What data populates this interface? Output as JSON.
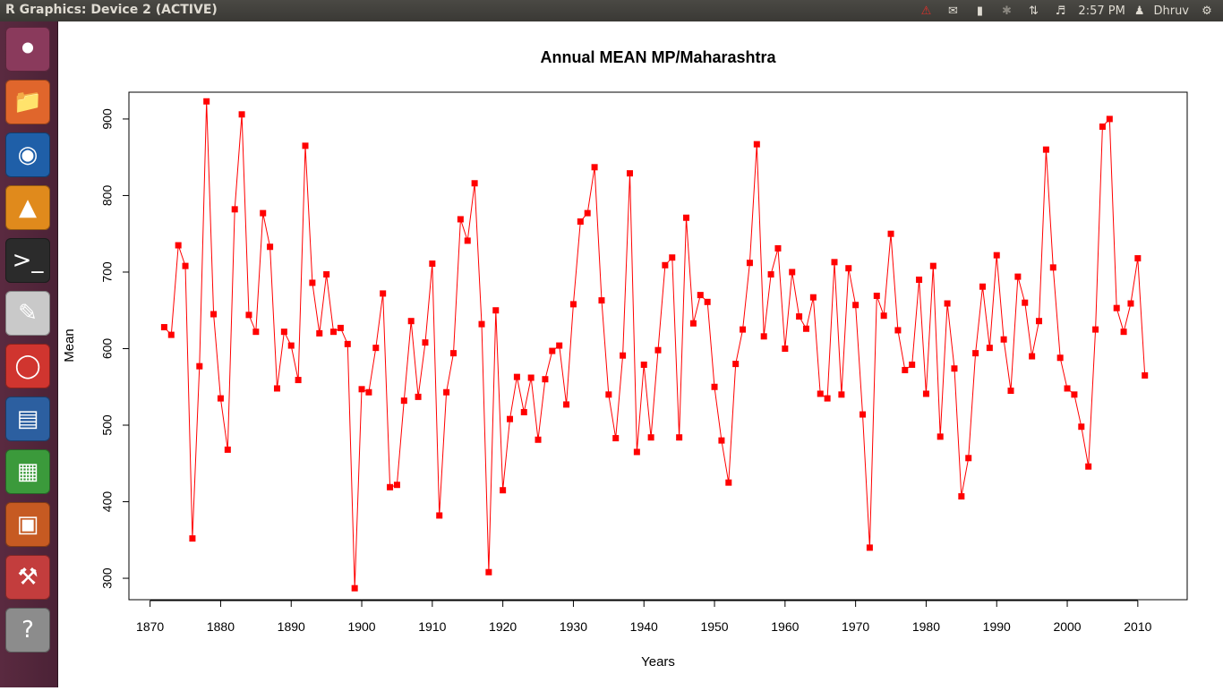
{
  "window": {
    "title": "R Graphics: Device 2 (ACTIVE)"
  },
  "tray": {
    "time": "2:57 PM",
    "user": "Dhruv"
  },
  "launcher": {
    "items": [
      {
        "name": "dash-icon",
        "color": "#8a3a5c"
      },
      {
        "name": "files-icon",
        "color": "#e0662c"
      },
      {
        "name": "firefox-icon",
        "color": "#1f5fa8"
      },
      {
        "name": "vlc-icon",
        "color": "#e08a1c"
      },
      {
        "name": "terminal-icon",
        "color": "#2b2b2b"
      },
      {
        "name": "text-editor-icon",
        "color": "#c9c9c9"
      },
      {
        "name": "document-viewer-icon",
        "color": "#d0352f"
      },
      {
        "name": "writer-icon",
        "color": "#2c5fa0"
      },
      {
        "name": "calc-icon",
        "color": "#3b9a3b"
      },
      {
        "name": "impress-icon",
        "color": "#c65a22"
      },
      {
        "name": "system-settings-icon",
        "color": "#c33d3d"
      },
      {
        "name": "workspace-switcher-icon",
        "color": "#8c8c8c"
      }
    ]
  },
  "chart_data": {
    "type": "line",
    "title": "Annual MEAN MP/Maharashtra",
    "xlabel": "Years",
    "ylabel": "Mean",
    "xlim": [
      1867,
      2017
    ],
    "ylim": [
      272,
      935
    ],
    "xticks": [
      1870,
      1880,
      1890,
      1900,
      1910,
      1920,
      1930,
      1940,
      1950,
      1960,
      1970,
      1980,
      1990,
      2000,
      2010
    ],
    "yticks": [
      300,
      400,
      500,
      600,
      700,
      800,
      900
    ],
    "grid": false,
    "legend": "none",
    "line_color": "#ff0000",
    "marker_color": "#ff0000",
    "marker": "square",
    "x": [
      1872,
      1873,
      1874,
      1875,
      1876,
      1877,
      1878,
      1879,
      1880,
      1881,
      1882,
      1883,
      1884,
      1885,
      1886,
      1887,
      1888,
      1889,
      1890,
      1891,
      1892,
      1893,
      1894,
      1895,
      1896,
      1897,
      1898,
      1899,
      1900,
      1901,
      1902,
      1903,
      1904,
      1905,
      1906,
      1907,
      1908,
      1909,
      1910,
      1911,
      1912,
      1913,
      1914,
      1915,
      1916,
      1917,
      1918,
      1919,
      1920,
      1921,
      1922,
      1923,
      1924,
      1925,
      1926,
      1927,
      1928,
      1929,
      1930,
      1931,
      1932,
      1933,
      1934,
      1935,
      1936,
      1937,
      1938,
      1939,
      1940,
      1941,
      1942,
      1943,
      1944,
      1945,
      1946,
      1947,
      1948,
      1949,
      1950,
      1951,
      1952,
      1953,
      1954,
      1955,
      1956,
      1957,
      1958,
      1959,
      1960,
      1961,
      1962,
      1963,
      1964,
      1965,
      1966,
      1967,
      1968,
      1969,
      1970,
      1971,
      1972,
      1973,
      1974,
      1975,
      1976,
      1977,
      1978,
      1979,
      1980,
      1981,
      1982,
      1983,
      1984,
      1985,
      1986,
      1987,
      1988,
      1989,
      1990,
      1991,
      1992,
      1993,
      1994,
      1995,
      1996,
      1997,
      1998,
      1999,
      2000,
      2001,
      2002,
      2003,
      2004,
      2005,
      2006,
      2007,
      2008,
      2009,
      2010,
      2011
    ],
    "values": [
      628,
      618,
      735,
      708,
      352,
      577,
      923,
      645,
      535,
      468,
      782,
      906,
      644,
      622,
      777,
      733,
      548,
      622,
      604,
      559,
      865,
      686,
      620,
      697,
      622,
      627,
      606,
      287,
      547,
      543,
      601,
      672,
      419,
      422,
      532,
      636,
      537,
      608,
      711,
      382,
      543,
      594,
      769,
      741,
      816,
      632,
      308,
      650,
      415,
      508,
      563,
      517,
      562,
      481,
      560,
      597,
      604,
      527,
      658,
      766,
      777,
      837,
      663,
      540,
      483,
      591,
      829,
      465,
      579,
      484,
      598,
      709,
      719,
      484,
      771,
      633,
      670,
      661,
      550,
      480,
      425,
      580,
      625,
      712,
      867,
      616,
      697,
      731,
      600,
      700,
      642,
      626,
      667,
      541,
      535,
      713,
      540,
      705,
      657,
      514,
      340,
      669,
      643,
      750,
      624,
      572,
      579,
      690,
      541,
      708,
      485,
      659,
      574,
      407,
      457,
      594,
      681,
      601,
      722,
      612,
      545,
      694,
      660,
      590,
      636,
      860,
      706,
      588,
      548,
      540,
      498,
      446,
      625,
      890,
      900,
      653,
      622,
      659,
      718,
      565
    ]
  }
}
